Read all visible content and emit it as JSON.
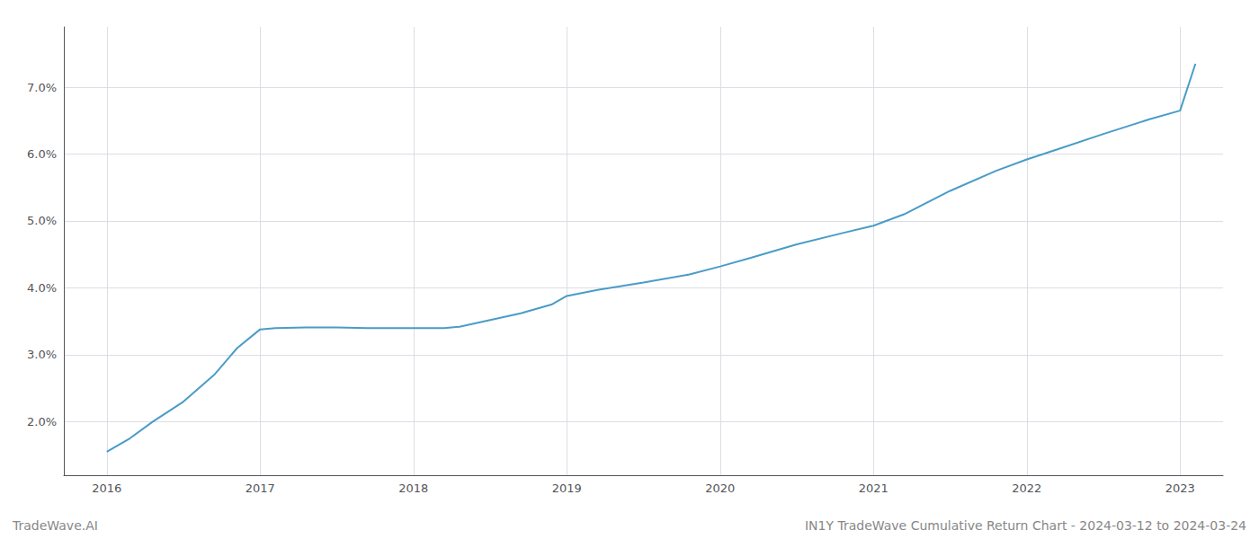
{
  "chart_data": {
    "type": "line",
    "x": [
      2016.0,
      2016.15,
      2016.3,
      2016.5,
      2016.7,
      2016.85,
      2017.0,
      2017.1,
      2017.3,
      2017.5,
      2017.7,
      2017.9,
      2018.0,
      2018.2,
      2018.3,
      2018.5,
      2018.7,
      2018.9,
      2019.0,
      2019.2,
      2019.5,
      2019.8,
      2020.0,
      2020.2,
      2020.5,
      2020.8,
      2021.0,
      2021.2,
      2021.5,
      2021.8,
      2022.0,
      2022.2,
      2022.5,
      2022.8,
      2023.0,
      2023.1
    ],
    "values": [
      1.55,
      1.75,
      2.0,
      2.3,
      2.7,
      3.1,
      3.38,
      3.4,
      3.41,
      3.41,
      3.4,
      3.4,
      3.4,
      3.4,
      3.42,
      3.52,
      3.62,
      3.75,
      3.88,
      3.97,
      4.08,
      4.2,
      4.32,
      4.45,
      4.65,
      4.82,
      4.93,
      5.1,
      5.45,
      5.75,
      5.92,
      6.07,
      6.3,
      6.52,
      6.65,
      7.35
    ],
    "color": "#4a9cc7",
    "xlim": [
      2015.72,
      2023.28
    ],
    "xticks": [
      2016,
      2017,
      2018,
      2019,
      2020,
      2021,
      2022,
      2023
    ],
    "ylim": [
      1.2,
      7.9
    ],
    "yticks": [
      {
        "value": 2.0,
        "label": "2.0%"
      },
      {
        "value": 3.0,
        "label": "3.0%"
      },
      {
        "value": 4.0,
        "label": "4.0%"
      },
      {
        "value": 5.0,
        "label": "5.0%"
      },
      {
        "value": 6.0,
        "label": "6.0%"
      },
      {
        "value": 7.0,
        "label": "7.0%"
      }
    ],
    "grid": true,
    "annotations": [
      "TradeWave.AI",
      "IN1Y TradeWave Cumulative Return Chart - 2024-03-12 to 2024-03-24"
    ]
  }
}
